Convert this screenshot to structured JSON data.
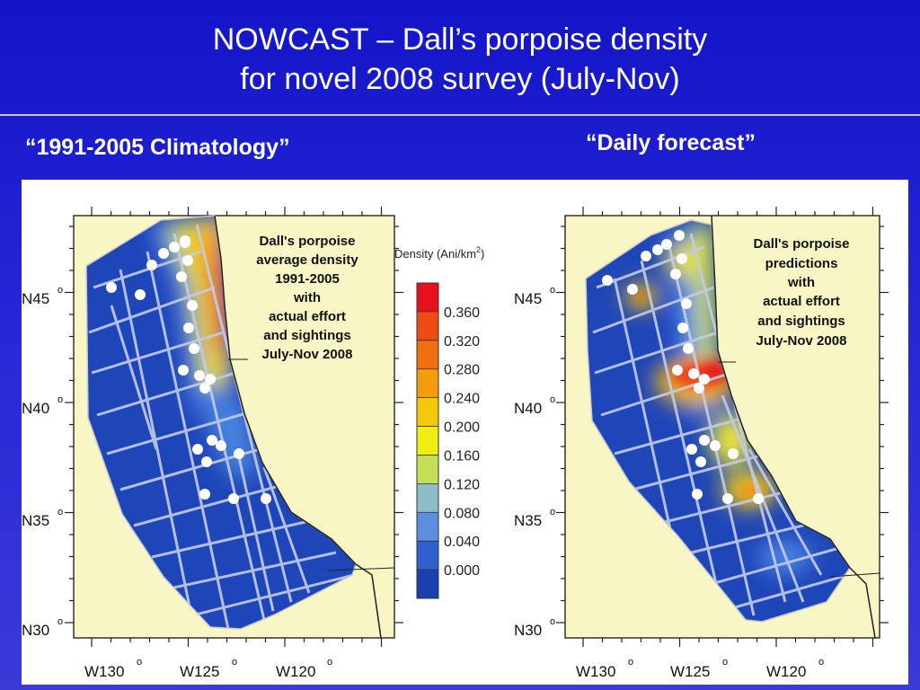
{
  "title": {
    "line1": "NOWCAST – Dall’s porpoise density",
    "line2": "for novel 2008 survey (July-Nov)"
  },
  "left_heading": "“1991-2005 Climatology”",
  "right_heading": "“Daily forecast”",
  "left_map": {
    "annotation": [
      "Dall's porpoise",
      "average density",
      "1991-2005",
      "with",
      "actual effort",
      "and sightings",
      "July-Nov 2008"
    ]
  },
  "right_map": {
    "annotation": [
      "Dall's porpoise",
      "predictions",
      "with",
      "actual effort",
      "and sightings",
      "July-Nov 2008"
    ]
  },
  "colorbar": {
    "title": "Density (Ani/km",
    "title_sup": "2",
    "title_end": ")",
    "ticks": [
      "0.360",
      "0.320",
      "0.280",
      "0.240",
      "0.200",
      "0.160",
      "0.120",
      "0.080",
      "0.040",
      "0.000"
    ],
    "colors": [
      "#e8101a",
      "#ee4a14",
      "#f06f10",
      "#f39c0c",
      "#f6c80a",
      "#f1ef12",
      "#c3df54",
      "#8fbcc9",
      "#5d8fe0",
      "#2d5fcf",
      "#1a3fb0"
    ]
  },
  "axes": {
    "lat_labels": [
      "N45",
      "N40",
      "N35",
      "N30"
    ],
    "lon_labels": [
      "W130",
      "W125",
      "W120"
    ],
    "degree": "o"
  },
  "colors": {
    "background": "#2020d0",
    "land": "#f8f6c4",
    "ocean_low": "#1e45b4",
    "track": "#d4d8ec",
    "sighting": "#ffffff"
  }
}
